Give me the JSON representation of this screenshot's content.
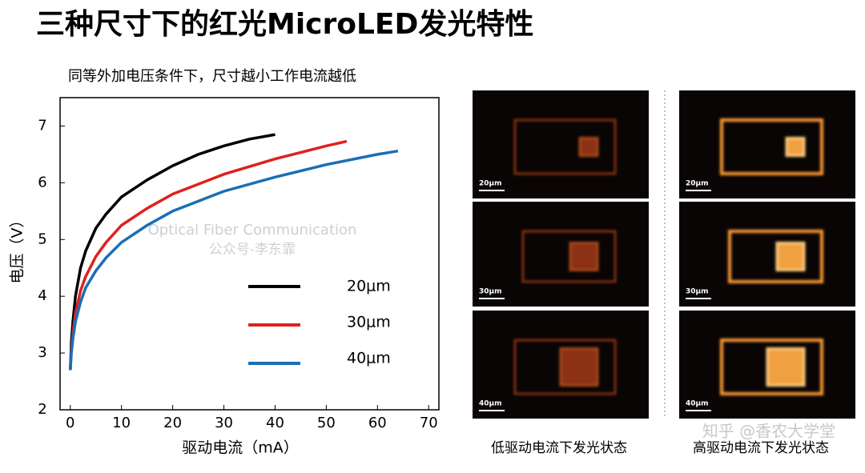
{
  "slide_title": "三种尺寸下的红光MicroLED发光特性",
  "watermark": [
    "Optical Fiber Communication",
    "公众号-李东霏"
  ],
  "site_watermark": "知乎 @香农大学堂",
  "chart_data": {
    "type": "line",
    "title": "同等外加电压条件下，尺寸越小工作电流越低",
    "x_label": "驱动电流（mA）",
    "y_label": "电压（V）",
    "xlim": [
      -2,
      72
    ],
    "ylim": [
      2,
      7.5
    ],
    "xticks": [
      0,
      10,
      20,
      30,
      40,
      50,
      60,
      70
    ],
    "yticks": [
      2,
      3,
      4,
      5,
      6,
      7
    ],
    "series": [
      {
        "name": "20μm",
        "color": "#000000",
        "x": [
          0,
          0.2,
          0.5,
          1,
          2,
          3,
          5,
          7,
          10,
          15,
          20,
          25,
          30,
          35,
          40
        ],
        "values": [
          2.7,
          3.2,
          3.55,
          4.0,
          4.5,
          4.8,
          5.2,
          5.45,
          5.75,
          6.05,
          6.3,
          6.5,
          6.65,
          6.77,
          6.85
        ]
      },
      {
        "name": "30μm",
        "color": "#e02020",
        "x": [
          0,
          0.2,
          0.5,
          1,
          2,
          3,
          5,
          7,
          10,
          15,
          20,
          30,
          40,
          50,
          54
        ],
        "values": [
          2.7,
          3.05,
          3.35,
          3.7,
          4.1,
          4.35,
          4.7,
          4.95,
          5.25,
          5.55,
          5.8,
          6.15,
          6.42,
          6.65,
          6.73
        ]
      },
      {
        "name": "40μm",
        "color": "#1a6fb5",
        "x": [
          0,
          0.2,
          0.5,
          1,
          2,
          3,
          5,
          7,
          10,
          15,
          20,
          30,
          40,
          50,
          60,
          64
        ],
        "values": [
          2.7,
          3.0,
          3.25,
          3.55,
          3.9,
          4.15,
          4.45,
          4.68,
          4.95,
          5.25,
          5.5,
          5.85,
          6.1,
          6.32,
          6.5,
          6.56
        ]
      }
    ]
  },
  "images": {
    "rows": [
      {
        "left_scale": "20μm",
        "right_scale": "20μm"
      },
      {
        "left_scale": "30μm",
        "right_scale": "30μm"
      },
      {
        "left_scale": "40μm",
        "right_scale": "40μm"
      }
    ],
    "captions": [
      "低驱动电流下发光状态",
      "高驱动电流下发光状态"
    ]
  }
}
